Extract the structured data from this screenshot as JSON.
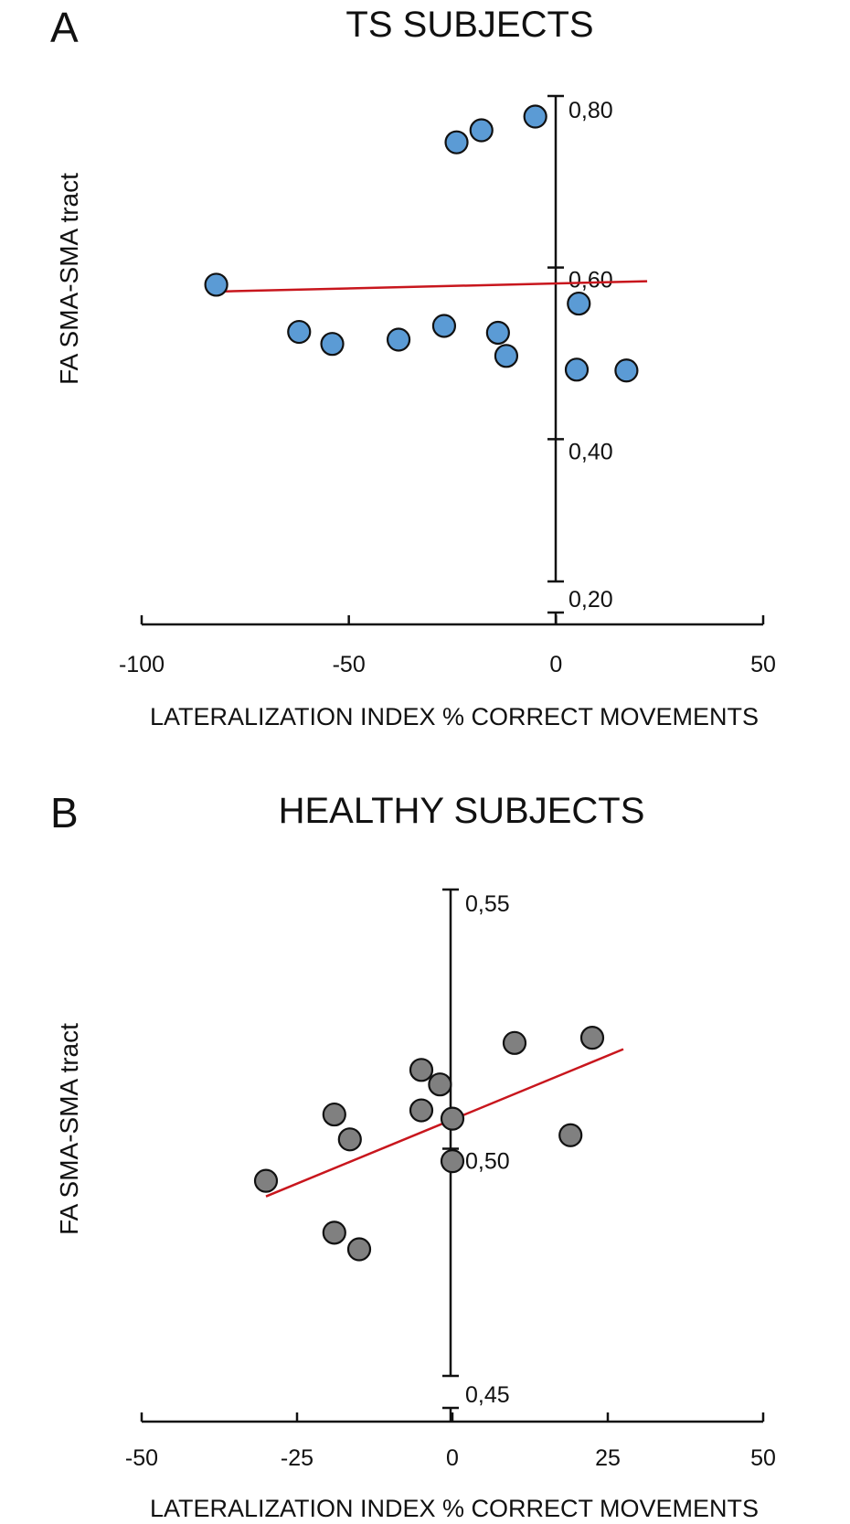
{
  "chart_data": [
    {
      "type": "scatter",
      "panel": "A",
      "title": "TS SUBJECTS",
      "xlabel": "LATERALIZATION INDEX % CORRECT  MOVEMENTS",
      "ylabel": "FA SMA-SMA tract",
      "xlim": [
        -100,
        50
      ],
      "ylim": [
        0.2,
        0.8
      ],
      "x_ticks": [
        "-100",
        "-50",
        "0",
        "50"
      ],
      "x_tick_values": [
        -100,
        -50,
        0,
        50
      ],
      "y_ticks": [
        "0,80",
        "0,60",
        "0,40",
        "0,20"
      ],
      "y_tick_values": [
        0.8,
        0.6,
        0.4,
        0.2
      ],
      "y_axis_break": true,
      "point_color": "#5b9bd5",
      "line_color": "#c8161d",
      "points": [
        {
          "x": -82,
          "y": 0.58
        },
        {
          "x": -62,
          "y": 0.525
        },
        {
          "x": -54,
          "y": 0.511
        },
        {
          "x": -38,
          "y": 0.516
        },
        {
          "x": -27,
          "y": 0.532
        },
        {
          "x": -24,
          "y": 0.746
        },
        {
          "x": -18,
          "y": 0.76
        },
        {
          "x": -14,
          "y": 0.524
        },
        {
          "x": -12,
          "y": 0.497
        },
        {
          "x": -5,
          "y": 0.776
        },
        {
          "x": 5,
          "y": 0.481
        },
        {
          "x": 5.5,
          "y": 0.558
        },
        {
          "x": 17,
          "y": 0.48
        }
      ],
      "trendline": {
        "x": [
          -82,
          22
        ],
        "y": [
          0.572,
          0.584
        ]
      }
    },
    {
      "type": "scatter",
      "panel": "B",
      "title": "HEALTHY SUBJECTS",
      "xlabel": "LATERALIZATION INDEX % CORRECT  MOVEMENTS",
      "ylabel": "FA SMA-SMA tract",
      "xlim": [
        -50,
        50
      ],
      "ylim": [
        0.45,
        0.55
      ],
      "x_ticks": [
        "-50",
        "-25",
        "0",
        "25",
        "50"
      ],
      "x_tick_values": [
        -50,
        -25,
        0,
        25,
        50
      ],
      "y_ticks": [
        "0,55",
        "0,50",
        "0,45"
      ],
      "y_tick_values": [
        0.55,
        0.5,
        0.45
      ],
      "y_axis_break": true,
      "point_color": "#808080",
      "line_color": "#c8161d",
      "points": [
        {
          "x": -30,
          "y": 0.4938
        },
        {
          "x": -19,
          "y": 0.5066
        },
        {
          "x": -19,
          "y": 0.4838
        },
        {
          "x": -16.5,
          "y": 0.5018
        },
        {
          "x": -15,
          "y": 0.4806
        },
        {
          "x": -5,
          "y": 0.5152
        },
        {
          "x": -5,
          "y": 0.5074
        },
        {
          "x": -2,
          "y": 0.5124
        },
        {
          "x": 0,
          "y": 0.5058
        },
        {
          "x": 0,
          "y": 0.4976
        },
        {
          "x": 10,
          "y": 0.5204
        },
        {
          "x": 19,
          "y": 0.5026
        },
        {
          "x": 22.5,
          "y": 0.5214
        }
      ],
      "trendline": {
        "x": [
          -30,
          27.5
        ],
        "y": [
          0.4908,
          0.5192
        ]
      }
    }
  ]
}
